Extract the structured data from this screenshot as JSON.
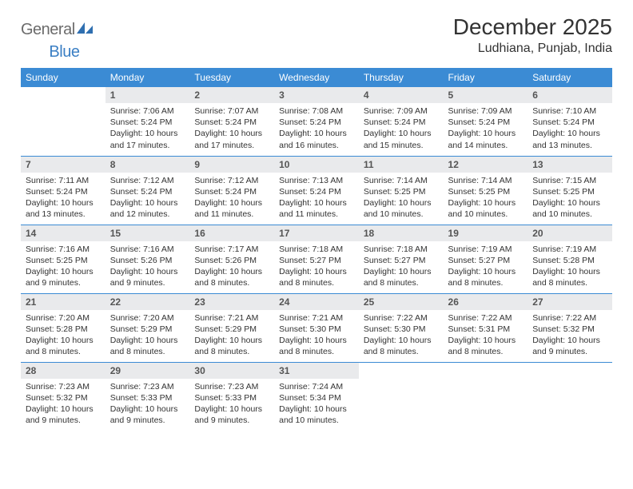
{
  "brand": {
    "word1": "General",
    "word2": "Blue"
  },
  "title": "December 2025",
  "location": "Ludhiana, Punjab, India",
  "colors": {
    "header_bg": "#3b8bd4",
    "header_text": "#ffffff",
    "daynum_bg": "#e9eaec",
    "cell_border": "#3b8bd4",
    "logo_gray": "#6b6b6b",
    "logo_blue": "#3b7fc4"
  },
  "dow": [
    "Sunday",
    "Monday",
    "Tuesday",
    "Wednesday",
    "Thursday",
    "Friday",
    "Saturday"
  ],
  "weeks": [
    [
      null,
      {
        "d": "1",
        "sr": "7:06 AM",
        "ss": "5:24 PM",
        "dl": "10 hours and 17 minutes."
      },
      {
        "d": "2",
        "sr": "7:07 AM",
        "ss": "5:24 PM",
        "dl": "10 hours and 17 minutes."
      },
      {
        "d": "3",
        "sr": "7:08 AM",
        "ss": "5:24 PM",
        "dl": "10 hours and 16 minutes."
      },
      {
        "d": "4",
        "sr": "7:09 AM",
        "ss": "5:24 PM",
        "dl": "10 hours and 15 minutes."
      },
      {
        "d": "5",
        "sr": "7:09 AM",
        "ss": "5:24 PM",
        "dl": "10 hours and 14 minutes."
      },
      {
        "d": "6",
        "sr": "7:10 AM",
        "ss": "5:24 PM",
        "dl": "10 hours and 13 minutes."
      }
    ],
    [
      {
        "d": "7",
        "sr": "7:11 AM",
        "ss": "5:24 PM",
        "dl": "10 hours and 13 minutes."
      },
      {
        "d": "8",
        "sr": "7:12 AM",
        "ss": "5:24 PM",
        "dl": "10 hours and 12 minutes."
      },
      {
        "d": "9",
        "sr": "7:12 AM",
        "ss": "5:24 PM",
        "dl": "10 hours and 11 minutes."
      },
      {
        "d": "10",
        "sr": "7:13 AM",
        "ss": "5:24 PM",
        "dl": "10 hours and 11 minutes."
      },
      {
        "d": "11",
        "sr": "7:14 AM",
        "ss": "5:25 PM",
        "dl": "10 hours and 10 minutes."
      },
      {
        "d": "12",
        "sr": "7:14 AM",
        "ss": "5:25 PM",
        "dl": "10 hours and 10 minutes."
      },
      {
        "d": "13",
        "sr": "7:15 AM",
        "ss": "5:25 PM",
        "dl": "10 hours and 10 minutes."
      }
    ],
    [
      {
        "d": "14",
        "sr": "7:16 AM",
        "ss": "5:25 PM",
        "dl": "10 hours and 9 minutes."
      },
      {
        "d": "15",
        "sr": "7:16 AM",
        "ss": "5:26 PM",
        "dl": "10 hours and 9 minutes."
      },
      {
        "d": "16",
        "sr": "7:17 AM",
        "ss": "5:26 PM",
        "dl": "10 hours and 8 minutes."
      },
      {
        "d": "17",
        "sr": "7:18 AM",
        "ss": "5:27 PM",
        "dl": "10 hours and 8 minutes."
      },
      {
        "d": "18",
        "sr": "7:18 AM",
        "ss": "5:27 PM",
        "dl": "10 hours and 8 minutes."
      },
      {
        "d": "19",
        "sr": "7:19 AM",
        "ss": "5:27 PM",
        "dl": "10 hours and 8 minutes."
      },
      {
        "d": "20",
        "sr": "7:19 AM",
        "ss": "5:28 PM",
        "dl": "10 hours and 8 minutes."
      }
    ],
    [
      {
        "d": "21",
        "sr": "7:20 AM",
        "ss": "5:28 PM",
        "dl": "10 hours and 8 minutes."
      },
      {
        "d": "22",
        "sr": "7:20 AM",
        "ss": "5:29 PM",
        "dl": "10 hours and 8 minutes."
      },
      {
        "d": "23",
        "sr": "7:21 AM",
        "ss": "5:29 PM",
        "dl": "10 hours and 8 minutes."
      },
      {
        "d": "24",
        "sr": "7:21 AM",
        "ss": "5:30 PM",
        "dl": "10 hours and 8 minutes."
      },
      {
        "d": "25",
        "sr": "7:22 AM",
        "ss": "5:30 PM",
        "dl": "10 hours and 8 minutes."
      },
      {
        "d": "26",
        "sr": "7:22 AM",
        "ss": "5:31 PM",
        "dl": "10 hours and 8 minutes."
      },
      {
        "d": "27",
        "sr": "7:22 AM",
        "ss": "5:32 PM",
        "dl": "10 hours and 9 minutes."
      }
    ],
    [
      {
        "d": "28",
        "sr": "7:23 AM",
        "ss": "5:32 PM",
        "dl": "10 hours and 9 minutes."
      },
      {
        "d": "29",
        "sr": "7:23 AM",
        "ss": "5:33 PM",
        "dl": "10 hours and 9 minutes."
      },
      {
        "d": "30",
        "sr": "7:23 AM",
        "ss": "5:33 PM",
        "dl": "10 hours and 9 minutes."
      },
      {
        "d": "31",
        "sr": "7:24 AM",
        "ss": "5:34 PM",
        "dl": "10 hours and 10 minutes."
      },
      null,
      null,
      null
    ]
  ],
  "labels": {
    "sunrise": "Sunrise:",
    "sunset": "Sunset:",
    "daylight": "Daylight:"
  }
}
